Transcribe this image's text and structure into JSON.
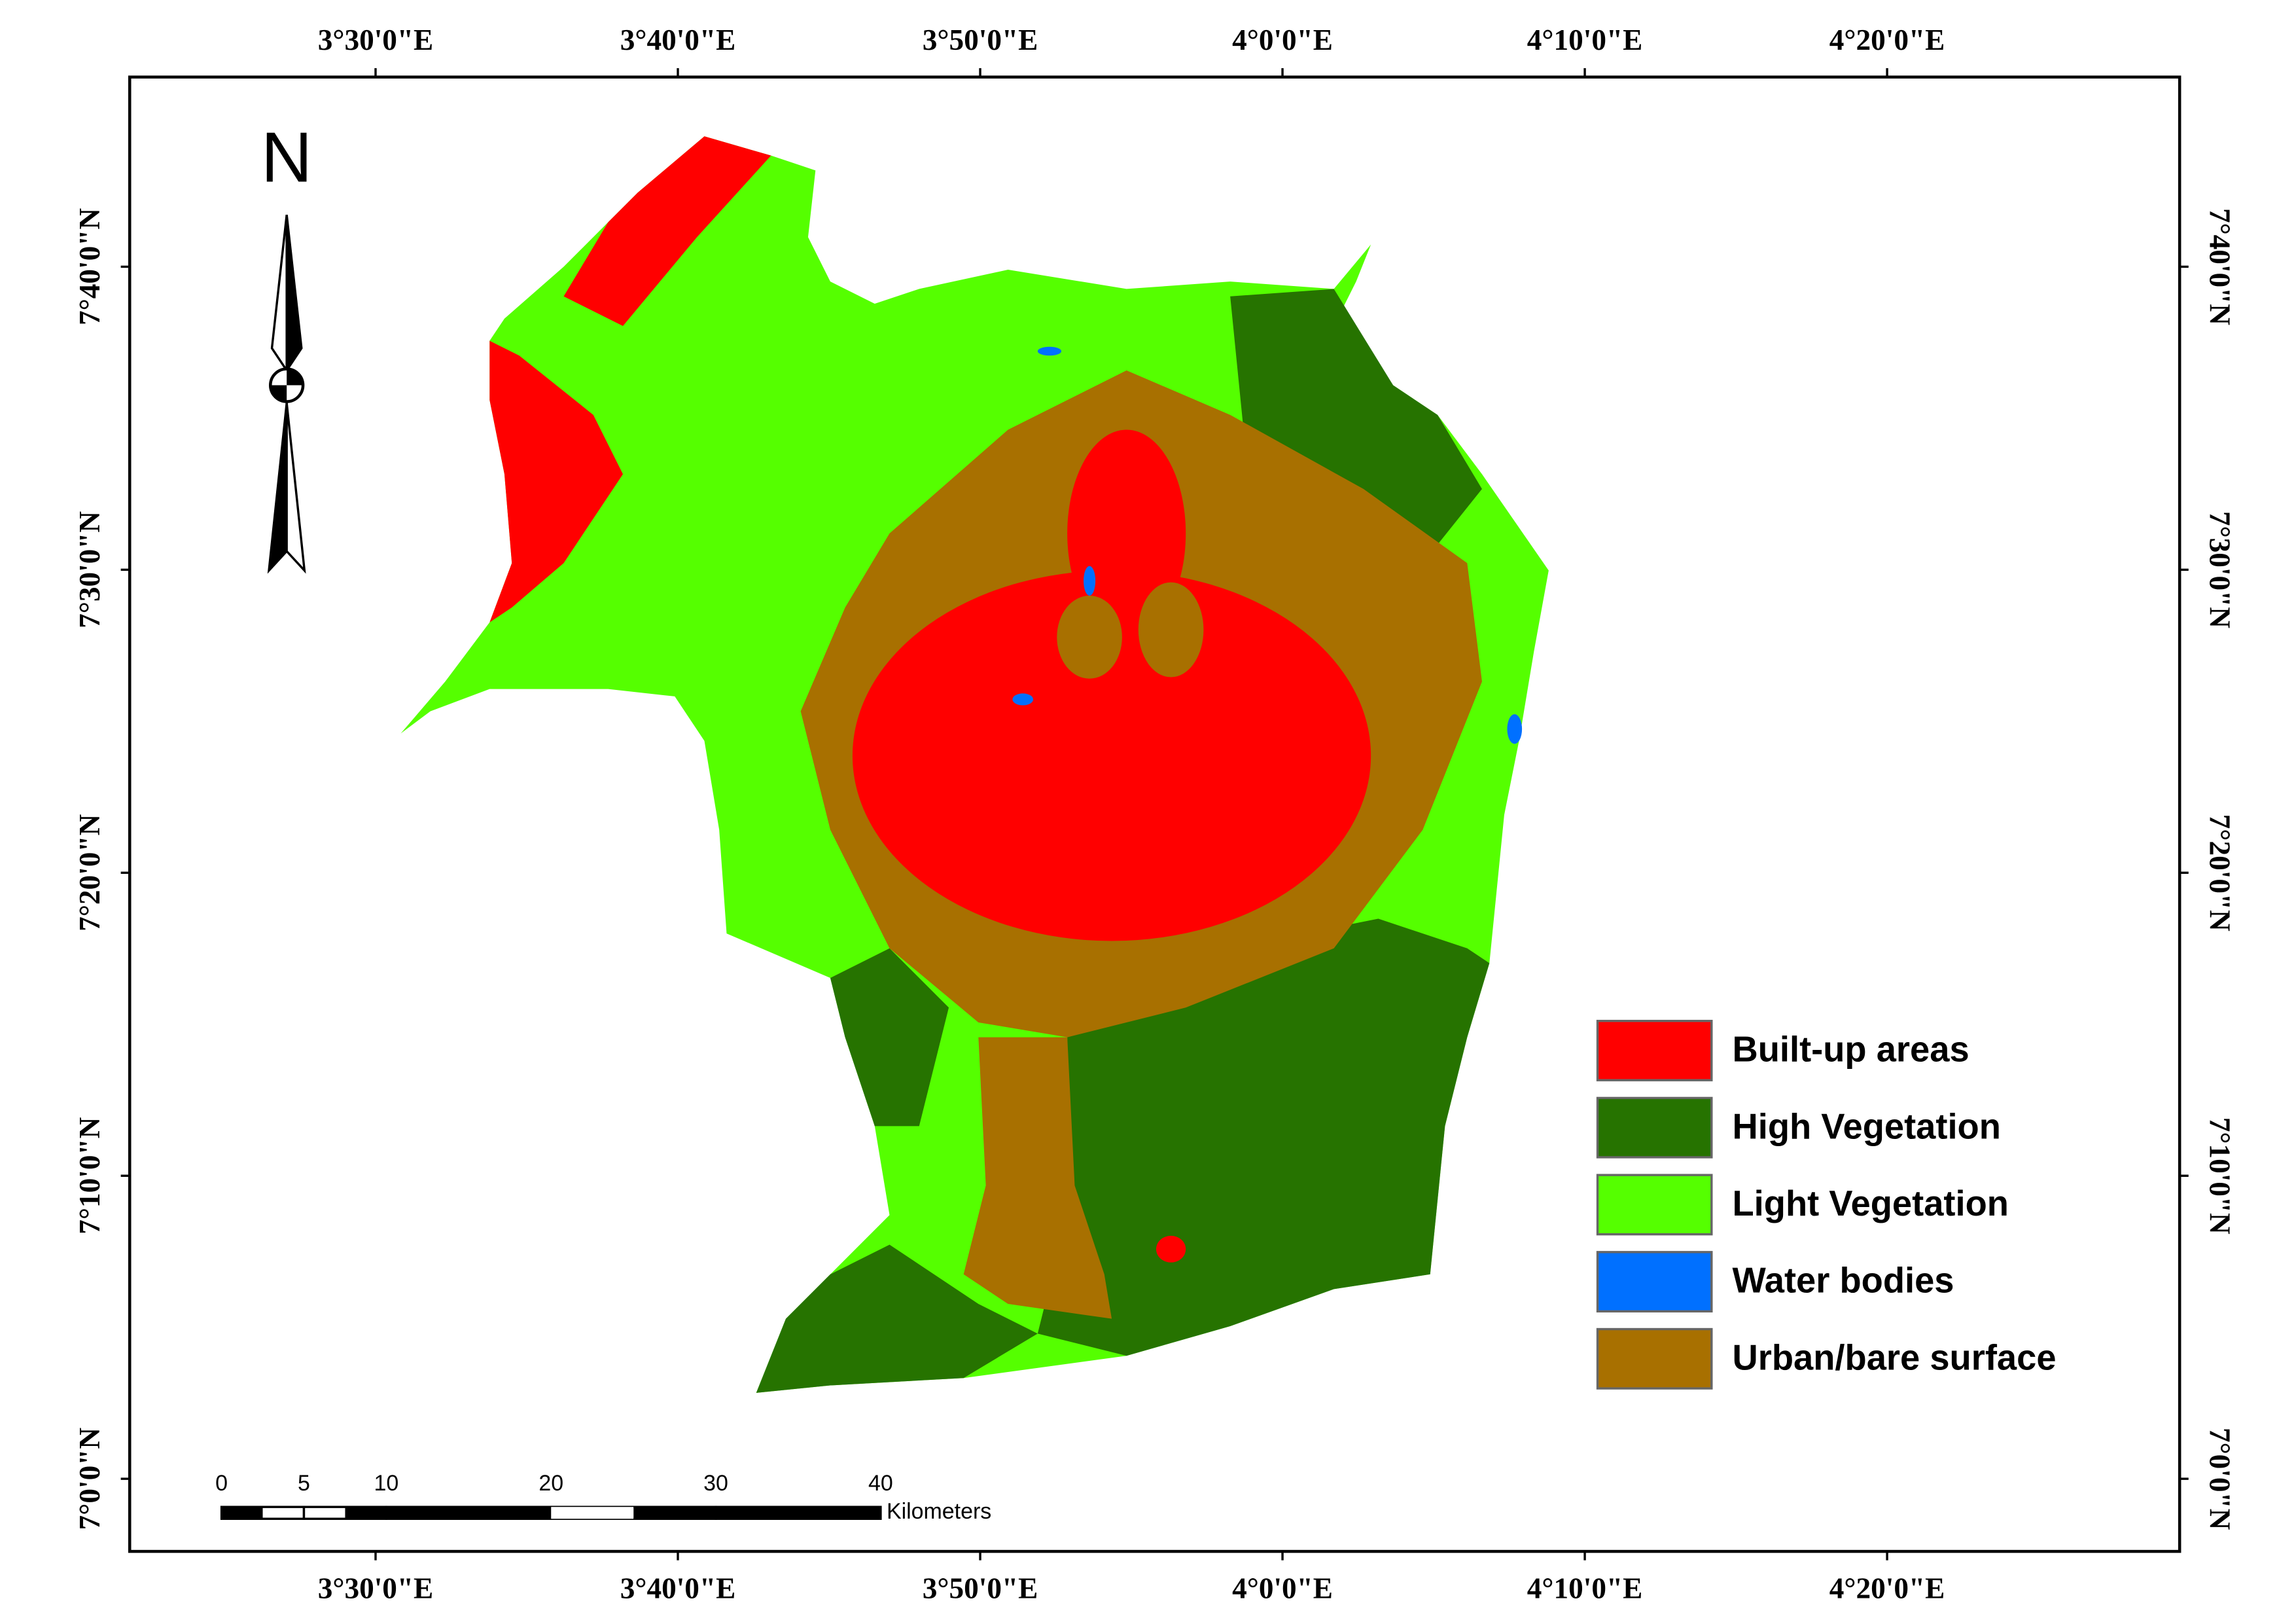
{
  "north": "N",
  "lon_labels": [
    "3°30'0\"E",
    "3°40'0\"E",
    "3°50'0\"E",
    "4°0'0\"E",
    "4°10'0\"E",
    "4°20'0\"E"
  ],
  "lat_labels": [
    "7°40'0\"N",
    "7°30'0\"N",
    "7°20'0\"N",
    "7°10'0\"N",
    "7°0'0\"N"
  ],
  "legend": [
    {
      "label": "Built-up areas",
      "color": "#ff0000"
    },
    {
      "label": "High Vegetation",
      "color": "#267300"
    },
    {
      "label": "Light Vegetation",
      "color": "#55ff00"
    },
    {
      "label": "Water bodies",
      "color": "#0070ff"
    },
    {
      "label": "Urban/bare surface",
      "color": "#a87000"
    }
  ],
  "scale_bar": {
    "ticks": [
      0,
      5,
      10,
      20,
      30,
      40
    ],
    "unit": "Kilometers"
  }
}
